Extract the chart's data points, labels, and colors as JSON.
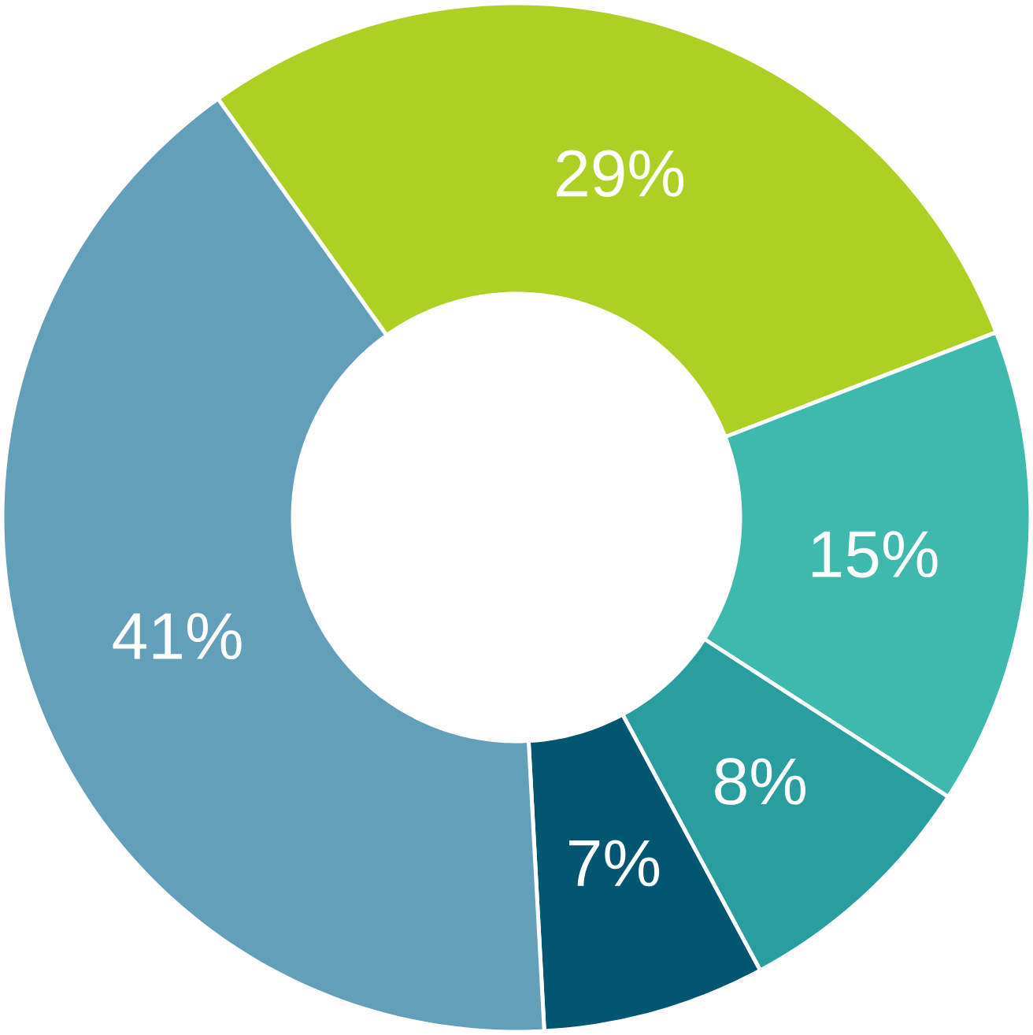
{
  "chart_data": {
    "type": "donut",
    "categories": [
      null,
      null,
      null,
      null,
      null
    ],
    "values": [
      29,
      15,
      8,
      7,
      41
    ],
    "colors": [
      "#aecf23",
      "#3fb8ad",
      "#2a9d9f",
      "#035670",
      "#639fb8"
    ],
    "value_labels": [
      "29%",
      "15%",
      "8%",
      "7%",
      "41%"
    ]
  }
}
